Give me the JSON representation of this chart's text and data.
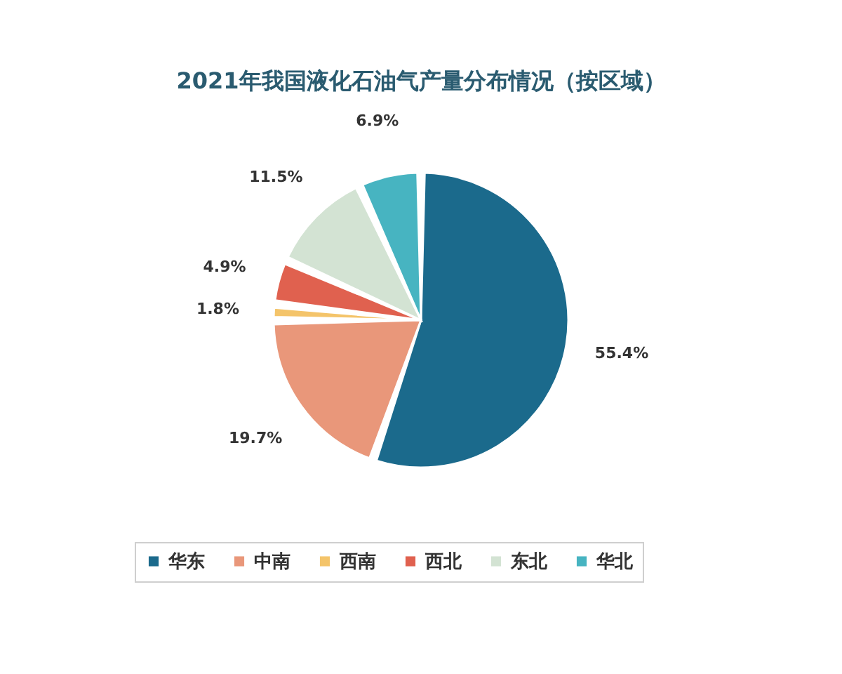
{
  "chart_data": {
    "type": "pie",
    "title": "2021年我国液化石油气产量分布情况（按区域）",
    "categories": [
      "华东",
      "中南",
      "西南",
      "西北",
      "东北",
      "华北"
    ],
    "values": [
      55.4,
      19.7,
      1.8,
      4.9,
      11.5,
      6.9
    ],
    "colors": [
      "#1b6a8c",
      "#e9977a",
      "#f4c46a",
      "#e0614f",
      "#d3e3d3",
      "#47b4c1"
    ],
    "value_labels": [
      "55.4%",
      "19.7%",
      "1.8%",
      "4.9%",
      "11.5%",
      "6.9%"
    ],
    "legend": "bottom"
  }
}
